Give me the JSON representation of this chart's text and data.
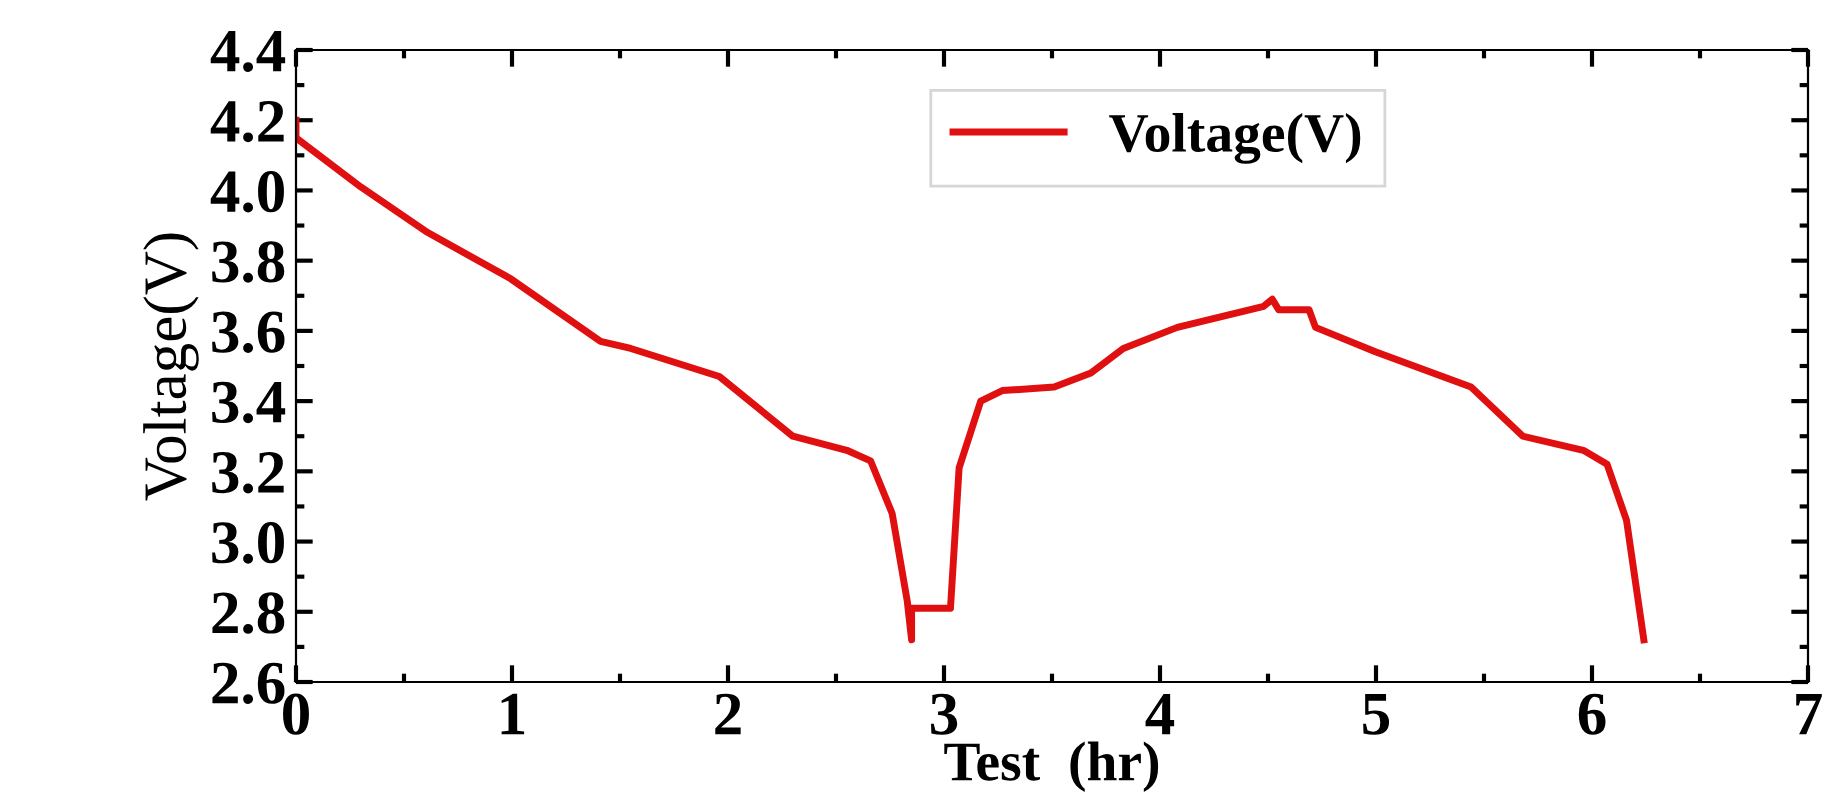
{
  "chart_data": {
    "type": "line",
    "xlabel": "Test  (hr)",
    "ylabel": "Voltage(V)",
    "xlim": [
      0,
      7
    ],
    "xticks": [
      0,
      1,
      2,
      3,
      4,
      5,
      6,
      7
    ],
    "ylim": [
      2.6,
      4.4
    ],
    "yticks": [
      {
        "value": 2.6,
        "label": "2.6"
      },
      {
        "value": 2.8,
        "label": "2.8"
      },
      {
        "value": 3.0,
        "label": "3.0"
      },
      {
        "value": 3.2,
        "label": "3.2"
      },
      {
        "value": 3.4,
        "label": "3.4"
      },
      {
        "value": 3.6,
        "label": "3.6"
      },
      {
        "value": 3.8,
        "label": "3.8"
      },
      {
        "value": 4.0,
        "label": "4.0"
      },
      {
        "value": 4.2,
        "label": "4.2"
      },
      {
        "value": 4.4,
        "label": "4.4"
      }
    ],
    "grid": false,
    "legend": "top",
    "marker": "none",
    "line_style": "solid",
    "series": [
      {
        "name": "Voltage(V)",
        "color": "#e01010",
        "x": [
          0,
          0.0,
          0.3,
          0.61,
          0.99,
          1.41,
          1.55,
          1.96,
          2.02,
          2.3,
          2.55,
          2.66,
          2.76,
          2.83,
          2.85,
          2.85,
          3.03,
          3.07,
          3.17,
          3.27,
          3.51,
          3.68,
          3.83,
          4.08,
          4.48,
          4.52,
          4.55,
          4.69,
          4.72,
          5.0,
          5.44,
          5.68,
          5.96,
          6.07,
          6.16,
          6.24
        ],
        "values": [
          4.2,
          4.15,
          4.01,
          3.88,
          3.75,
          3.57,
          3.55,
          3.47,
          3.44,
          3.3,
          3.26,
          3.23,
          3.08,
          2.83,
          2.72,
          2.81,
          2.81,
          3.21,
          3.4,
          3.43,
          3.44,
          3.48,
          3.55,
          3.61,
          3.67,
          3.69,
          3.66,
          3.66,
          3.61,
          3.54,
          3.44,
          3.3,
          3.26,
          3.22,
          3.06,
          2.72
        ]
      }
    ]
  }
}
